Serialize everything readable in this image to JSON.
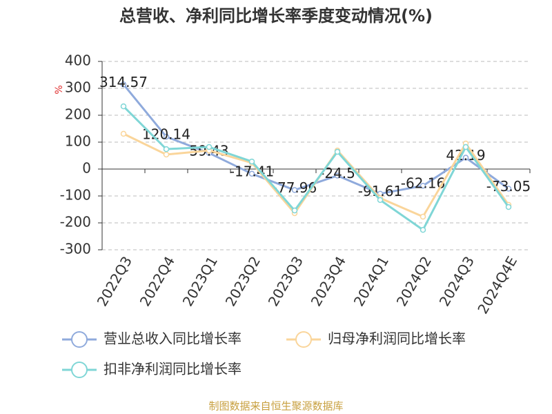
{
  "chart_data": {
    "type": "line",
    "title": "总营收、净利同比增长率季度变动情况(%)",
    "y_unit": "%",
    "source": "制图数据来自恒生聚源数据库",
    "categories": [
      "2022Q3",
      "2022Q4",
      "2023Q1",
      "2023Q2",
      "2023Q3",
      "2023Q4",
      "2024Q1",
      "2024Q2",
      "2024Q3",
      "2024Q4E"
    ],
    "series": [
      {
        "name": "营业总收入同比增长率",
        "color": "#8faadc",
        "values": [
          314.57,
          120.14,
          59.43,
          -17.41,
          -77.96,
          -24.5,
          -91.61,
          -62.16,
          42.19,
          -73.05
        ],
        "show_labels": true
      },
      {
        "name": "归母净利润同比增长率",
        "color": "#fad59a",
        "values": [
          131,
          54,
          69,
          23,
          -164,
          69,
          -108,
          -177,
          95,
          -133
        ]
      },
      {
        "name": "扣非净利润同比增长率",
        "color": "#7fd6d6",
        "values": [
          233,
          74,
          82,
          28,
          -154,
          64,
          -115,
          -226,
          82,
          -141
        ]
      }
    ],
    "ylim": [
      -300,
      400
    ],
    "yticks": [
      -300,
      -200,
      -100,
      0,
      100,
      200,
      300,
      400
    ],
    "grid": true
  }
}
